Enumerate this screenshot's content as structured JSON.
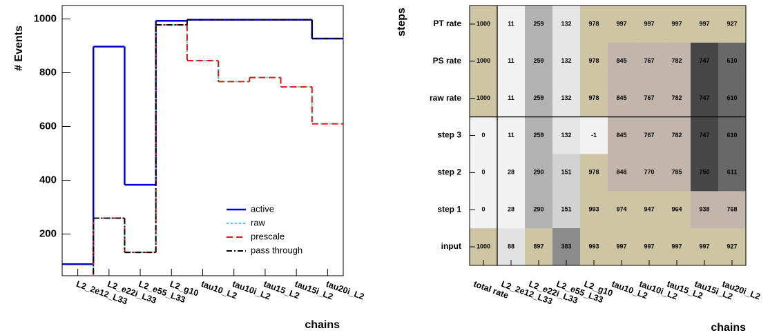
{
  "chart_data": [
    {
      "type": "step",
      "ylabel": "# Events",
      "xlabel": "chains",
      "categories": [
        "L2_2e12_L33",
        "L2_e22i_L33",
        "L2_e55_L33",
        "L2_g10",
        "tau10_L2",
        "tau10i_L2",
        "tau15_L2",
        "tau15i_L2",
        "tau20i_L2"
      ],
      "series": [
        {
          "name": "active",
          "color": "#0000cc",
          "dash": "none",
          "values": [
            88,
            897,
            383,
            993,
            997,
            997,
            997,
            997,
            927
          ]
        },
        {
          "name": "raw",
          "color": "#33dde8",
          "dash": "3,3",
          "values": [
            11,
            259,
            132,
            978,
            845,
            767,
            782,
            747,
            610
          ]
        },
        {
          "name": "prescale",
          "color": "#ee1111",
          "dash": "9,5",
          "values": [
            11,
            259,
            132,
            978,
            845,
            767,
            782,
            747,
            610
          ]
        },
        {
          "name": "pass through",
          "color": "#000000",
          "dash": "8,3,2,3",
          "values": [
            11,
            259,
            132,
            978,
            997,
            997,
            997,
            997,
            927
          ]
        }
      ],
      "ylim": [
        45,
        1050
      ],
      "yticks": [
        200,
        400,
        600,
        800,
        1000
      ]
    },
    {
      "type": "heatmap",
      "ylabel": "steps",
      "xlabel": "chains",
      "x": [
        "total rate",
        "L2_2e12_L33",
        "L2_e22i_L33",
        "L2_e55_L33",
        "L2_g10",
        "tau10_L2",
        "tau10i_L2",
        "tau15_L2",
        "tau15i_L2",
        "tau20i_L2"
      ],
      "y": [
        "PT rate",
        "PS rate",
        "raw rate",
        "step 3",
        "step 2",
        "step 1",
        "input"
      ],
      "values": [
        [
          1000,
          11,
          259,
          132,
          978,
          997,
          997,
          997,
          997,
          927
        ],
        [
          1000,
          11,
          259,
          132,
          978,
          845,
          767,
          782,
          747,
          610
        ],
        [
          1000,
          11,
          259,
          132,
          978,
          845,
          767,
          782,
          747,
          610
        ],
        [
          0,
          11,
          259,
          132,
          -1,
          845,
          767,
          782,
          747,
          610
        ],
        [
          0,
          28,
          290,
          151,
          978,
          848,
          770,
          785,
          750,
          611
        ],
        [
          0,
          28,
          290,
          151,
          993,
          974,
          947,
          964,
          938,
          768
        ],
        [
          1000,
          88,
          897,
          383,
          993,
          997,
          997,
          997,
          997,
          927
        ]
      ],
      "colors": [
        [
          "#cdc5a3",
          "#f2f2f2",
          "#b2b2b2",
          "#e6e6e6",
          "#cdc5a3",
          "#cdc5a3",
          "#cdc5a3",
          "#cdc5a3",
          "#cdc5a3",
          "#cdc5a3"
        ],
        [
          "#cdc5a3",
          "#f2f2f2",
          "#b2b2b2",
          "#e6e6e6",
          "#cdc5a3",
          "#c2b6ac",
          "#c2b6ac",
          "#c2b6ac",
          "#474747",
          "#686868"
        ],
        [
          "#cdc5a3",
          "#f2f2f2",
          "#b2b2b2",
          "#e6e6e6",
          "#cdc5a3",
          "#c2b6ac",
          "#c2b6ac",
          "#c2b6ac",
          "#474747",
          "#686868"
        ],
        [
          "#f2f2f2",
          "#f2f2f2",
          "#b2b2b2",
          "#e6e6e6",
          "#f2f2f2",
          "#c2b6ac",
          "#c2b6ac",
          "#c2b6ac",
          "#474747",
          "#686868"
        ],
        [
          "#f2f2f2",
          "#f2f2f2",
          "#b2b2b2",
          "#d2d2d2",
          "#cdc5a3",
          "#c2b6ac",
          "#c2b6ac",
          "#c2b6ac",
          "#474747",
          "#686868"
        ],
        [
          "#f2f2f2",
          "#f2f2f2",
          "#b2b2b2",
          "#d2d2d2",
          "#cdc5a3",
          "#cdc5a3",
          "#cdc5a3",
          "#cdc5a3",
          "#c2b6ac",
          "#c2b6ac"
        ],
        [
          "#cdc5a3",
          "#e2e2e2",
          "#cdc5a3",
          "#8c8c8c",
          "#cdc5a3",
          "#cdc5a3",
          "#cdc5a3",
          "#cdc5a3",
          "#cdc5a3",
          "#cdc5a3"
        ]
      ]
    }
  ]
}
